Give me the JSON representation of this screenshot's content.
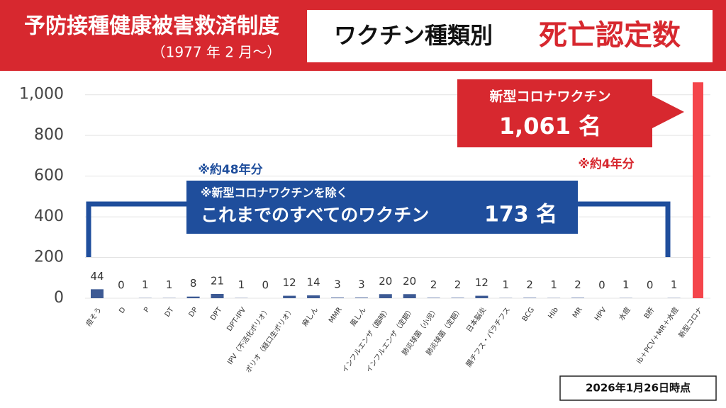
{
  "chart_data": {
    "type": "bar",
    "title": "予防接種健康被害救済制度",
    "subtitle": "（1977 年 2 月〜）",
    "heading": "ワクチン種類別",
    "heading_emphasis": "死亡認定数",
    "categories": [
      "痘そう",
      "D",
      "P",
      "DT",
      "DP",
      "DPT",
      "DPT-IPV",
      "IPV（不活化ポリオ）",
      "ポリオ（経口生ポリオ）",
      "麻しん",
      "MMR",
      "風しん",
      "インフルエンザ（臨時）",
      "インフルエンザ（定期）",
      "肺炎球菌（小児）",
      "肺炎球菌（定期）",
      "日本脳炎",
      "腸チフス・パラチフス",
      "BCG",
      "Hib",
      "MR",
      "HPV",
      "水痘",
      "B肝",
      "ib＋PCV＋MR＋水痘",
      "新型コロナ"
    ],
    "values": [
      44,
      0,
      1,
      1,
      8,
      21,
      1,
      0,
      12,
      14,
      3,
      3,
      20,
      20,
      2,
      2,
      12,
      1,
      2,
      1,
      2,
      0,
      1,
      0,
      1,
      1061
    ],
    "colors": [
      "#3d5a94",
      "#3d5a94",
      "#3d5a94",
      "#3d5a94",
      "#3d5a94",
      "#3d5a94",
      "#3d5a94",
      "#3d5a94",
      "#3d5a94",
      "#3d5a94",
      "#3d5a94",
      "#3d5a94",
      "#3d5a94",
      "#3d5a94",
      "#3d5a94",
      "#3d5a94",
      "#3d5a94",
      "#3d5a94",
      "#3d5a94",
      "#3d5a94",
      "#3d5a94",
      "#3d5a94",
      "#3d5a94",
      "#3d5a94",
      "#3d5a94",
      "#f4454b"
    ],
    "ylim": [
      0,
      1100
    ],
    "yticks": [
      0,
      200,
      400,
      600,
      800,
      {
        "value": 1000,
        "label": "1,000"
      }
    ],
    "grid": true,
    "annotations": {
      "covid_name": "新型コロナワクチン",
      "covid_total": "1,061 名",
      "covid_period": "※約4年分",
      "others_period": "※約48年分",
      "others_note": "※新型コロナワクチンを除く",
      "others_name": "これまでのすべてのワクチン",
      "others_total": "173 名"
    },
    "footnote": "2026年1月26日時点"
  }
}
